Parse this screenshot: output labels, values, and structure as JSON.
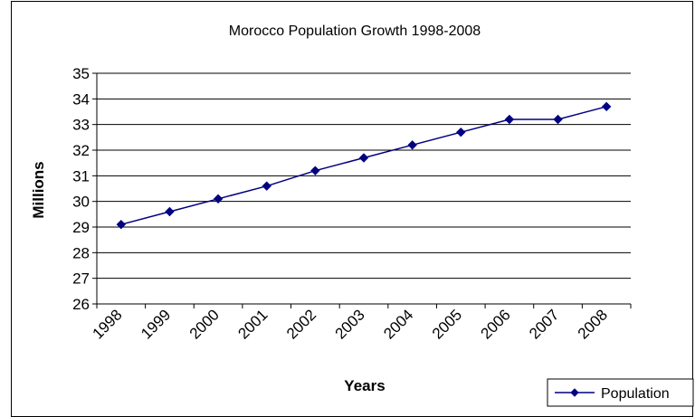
{
  "chart_data": {
    "type": "line",
    "title": "Morocco Population Growth 1998-2008",
    "xlabel": "Years",
    "ylabel": "Millions",
    "categories": [
      "1998",
      "1999",
      "2000",
      "2001",
      "2002",
      "2003",
      "2004",
      "2005",
      "2006",
      "2007",
      "2008"
    ],
    "series": [
      {
        "name": "Population",
        "values": [
          29.1,
          29.6,
          30.1,
          30.6,
          31.2,
          31.7,
          32.2,
          32.7,
          33.2,
          33.2,
          33.7
        ],
        "color": "#000080",
        "marker": "diamond"
      }
    ],
    "ylim": [
      26,
      35
    ],
    "yticks": [
      26,
      27,
      28,
      29,
      30,
      31,
      32,
      33,
      34,
      35
    ],
    "grid": "horizontal",
    "legend_position": "bottom-right"
  }
}
